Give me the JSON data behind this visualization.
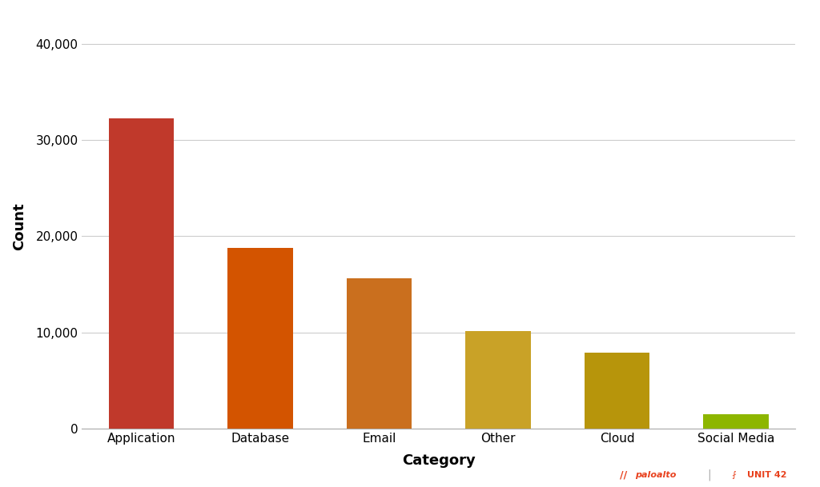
{
  "categories": [
    "Application",
    "Database",
    "Email",
    "Other",
    "Cloud",
    "Social Media"
  ],
  "values": [
    32200,
    18800,
    15600,
    10100,
    7900,
    1500
  ],
  "bar_colors": [
    "#C0392B",
    "#D35400",
    "#CA6F1E",
    "#C9A227",
    "#B7950B",
    "#8DB600"
  ],
  "xlabel": "Category",
  "ylabel": "Count",
  "ylim": [
    0,
    42000
  ],
  "yticks": [
    0,
    10000,
    20000,
    30000,
    40000
  ],
  "ytick_labels": [
    "0",
    "10,000",
    "20,000",
    "30,000",
    "40,000"
  ],
  "background_color": "#ffffff",
  "grid_color": "#cccccc",
  "xlabel_fontsize": 13,
  "ylabel_fontsize": 13,
  "tick_fontsize": 11,
  "logo_text_paloalto": "paloalto",
  "logo_text_unit42": "UNIT 42",
  "logo_color": "#E8401C",
  "logo_separator_color": "#aaaaaa"
}
